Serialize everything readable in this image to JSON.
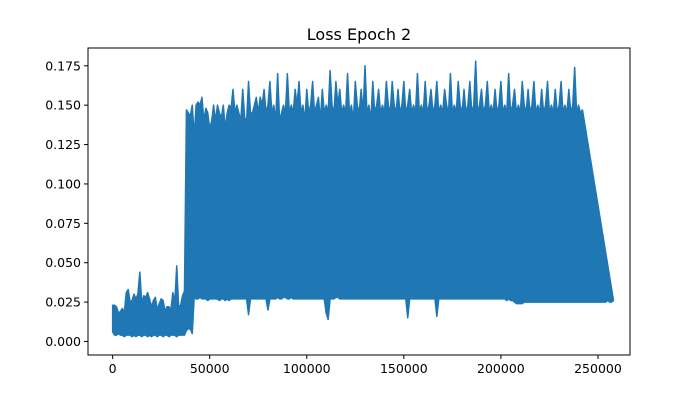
{
  "chart_data": {
    "type": "line",
    "title": "Loss Epoch 2",
    "xlabel": "",
    "ylabel": "",
    "xlim": [
      -12700,
      266500
    ],
    "ylim": [
      -0.0086,
      0.1863
    ],
    "grid": false,
    "legend": "none",
    "x_ticks": [
      0,
      50000,
      100000,
      150000,
      200000,
      250000
    ],
    "x_tick_labels": [
      "0",
      "50000",
      "100000",
      "150000",
      "200000",
      "250000"
    ],
    "y_ticks": [
      0.0,
      0.025,
      0.05,
      0.075,
      0.1,
      0.125,
      0.15,
      0.175
    ],
    "y_tick_labels": [
      "0.000",
      "0.025",
      "0.050",
      "0.075",
      "0.100",
      "0.125",
      "0.150",
      "0.175"
    ],
    "series": [
      {
        "color": "#1f77b4",
        "sample_step": 1000,
        "x_start": 0,
        "band_low": [
          0.006,
          0.004,
          0.004,
          0.005,
          0.004,
          0.004,
          0.003,
          0.004,
          0.004,
          0.004,
          0.003,
          0.004,
          0.003,
          0.004,
          0.004,
          0.003,
          0.004,
          0.004,
          0.003,
          0.004,
          0.003,
          0.004,
          0.004,
          0.003,
          0.004,
          0.004,
          0.003,
          0.004,
          0.004,
          0.003,
          0.004,
          0.004,
          0.004,
          0.003,
          0.004,
          0.004,
          0.004,
          0.004,
          0.007,
          0.008,
          0.008,
          0.005,
          0.028,
          0.027,
          0.027,
          0.028,
          0.027,
          0.027,
          0.027,
          0.026,
          0.027,
          0.027,
          0.027,
          0.027,
          0.027,
          0.026,
          0.027,
          0.027,
          0.026,
          0.027,
          0.026,
          0.027,
          0.027,
          0.027,
          0.027,
          0.027,
          0.027,
          0.027,
          0.027,
          0.027,
          0.017,
          0.027,
          0.027,
          0.027,
          0.027,
          0.027,
          0.027,
          0.027,
          0.027,
          0.027,
          0.02,
          0.027,
          0.027,
          0.027,
          0.027,
          0.028,
          0.027,
          0.027,
          0.028,
          0.028,
          0.027,
          0.027,
          0.028,
          0.027,
          0.027,
          0.027,
          0.027,
          0.027,
          0.027,
          0.027,
          0.027,
          0.027,
          0.027,
          0.027,
          0.027,
          0.027,
          0.027,
          0.027,
          0.027,
          0.027,
          0.018,
          0.014,
          0.027,
          0.027,
          0.027,
          0.028,
          0.028,
          0.027,
          0.027,
          0.027,
          0.027,
          0.027,
          0.027,
          0.027,
          0.027,
          0.027,
          0.027,
          0.027,
          0.027,
          0.027,
          0.027,
          0.027,
          0.027,
          0.027,
          0.027,
          0.027,
          0.027,
          0.027,
          0.027,
          0.027,
          0.027,
          0.027,
          0.027,
          0.027,
          0.027,
          0.027,
          0.027,
          0.027,
          0.027,
          0.027,
          0.027,
          0.027,
          0.015,
          0.027,
          0.027,
          0.027,
          0.027,
          0.027,
          0.027,
          0.027,
          0.027,
          0.027,
          0.027,
          0.027,
          0.027,
          0.027,
          0.027,
          0.016,
          0.027,
          0.027,
          0.027,
          0.027,
          0.027,
          0.027,
          0.027,
          0.027,
          0.027,
          0.027,
          0.027,
          0.027,
          0.027,
          0.027,
          0.027,
          0.027,
          0.027,
          0.027,
          0.027,
          0.027,
          0.027,
          0.027,
          0.027,
          0.027,
          0.027,
          0.027,
          0.027,
          0.027,
          0.027,
          0.027,
          0.027,
          0.027,
          0.027,
          0.027,
          0.027,
          0.026,
          0.027,
          0.026,
          0.026,
          0.025,
          0.024,
          0.024,
          0.024,
          0.024,
          0.025,
          0.025,
          0.025,
          0.025,
          0.025,
          0.025,
          0.025,
          0.025,
          0.025,
          0.025,
          0.025,
          0.025,
          0.025,
          0.025,
          0.025,
          0.025,
          0.025,
          0.025,
          0.025,
          0.025,
          0.025,
          0.025,
          0.025,
          0.025,
          0.025,
          0.025,
          0.025,
          0.025,
          0.025,
          0.025,
          0.025,
          0.025,
          0.025,
          0.025,
          0.025,
          0.025,
          0.025,
          0.025,
          0.025,
          0.025,
          0.025,
          0.025,
          0.025,
          0.026,
          0.025,
          0.025,
          0.026
        ],
        "band_high": [
          0.023,
          0.023,
          0.022,
          0.018,
          0.019,
          0.021,
          0.018,
          0.031,
          0.033,
          0.025,
          0.026,
          0.03,
          0.027,
          0.03,
          0.044,
          0.024,
          0.029,
          0.028,
          0.031,
          0.027,
          0.022,
          0.026,
          0.028,
          0.02,
          0.024,
          0.027,
          0.026,
          0.019,
          0.022,
          0.022,
          0.02,
          0.031,
          0.025,
          0.048,
          0.022,
          0.023,
          0.029,
          0.032,
          0.147,
          0.145,
          0.143,
          0.15,
          0.13,
          0.15,
          0.152,
          0.15,
          0.155,
          0.14,
          0.148,
          0.145,
          0.135,
          0.14,
          0.15,
          0.14,
          0.15,
          0.145,
          0.142,
          0.15,
          0.135,
          0.145,
          0.15,
          0.148,
          0.16,
          0.145,
          0.15,
          0.145,
          0.14,
          0.16,
          0.142,
          0.14,
          0.165,
          0.145,
          0.145,
          0.15,
          0.155,
          0.145,
          0.155,
          0.15,
          0.16,
          0.145,
          0.15,
          0.165,
          0.145,
          0.15,
          0.14,
          0.17,
          0.14,
          0.145,
          0.15,
          0.145,
          0.17,
          0.145,
          0.15,
          0.145,
          0.16,
          0.15,
          0.165,
          0.145,
          0.15,
          0.14,
          0.16,
          0.145,
          0.15,
          0.165,
          0.145,
          0.15,
          0.155,
          0.14,
          0.16,
          0.145,
          0.15,
          0.145,
          0.172,
          0.15,
          0.145,
          0.165,
          0.15,
          0.16,
          0.145,
          0.15,
          0.145,
          0.17,
          0.145,
          0.15,
          0.14,
          0.165,
          0.15,
          0.145,
          0.16,
          0.145,
          0.175,
          0.145,
          0.15,
          0.14,
          0.165,
          0.145,
          0.15,
          0.16,
          0.145,
          0.15,
          0.145,
          0.165,
          0.15,
          0.145,
          0.165,
          0.15,
          0.145,
          0.16,
          0.145,
          0.15,
          0.165,
          0.145,
          0.15,
          0.16,
          0.145,
          0.15,
          0.145,
          0.17,
          0.145,
          0.15,
          0.145,
          0.165,
          0.145,
          0.15,
          0.16,
          0.145,
          0.15,
          0.165,
          0.145,
          0.15,
          0.145,
          0.16,
          0.15,
          0.145,
          0.17,
          0.145,
          0.15,
          0.145,
          0.165,
          0.15,
          0.145,
          0.16,
          0.145,
          0.15,
          0.165,
          0.145,
          0.15,
          0.178,
          0.145,
          0.15,
          0.16,
          0.145,
          0.15,
          0.165,
          0.145,
          0.15,
          0.145,
          0.16,
          0.145,
          0.15,
          0.165,
          0.145,
          0.15,
          0.145,
          0.17,
          0.145,
          0.15,
          0.16,
          0.145,
          0.15,
          0.145,
          0.165,
          0.15,
          0.145,
          0.16,
          0.145,
          0.15,
          0.165,
          0.145,
          0.15,
          0.145,
          0.16,
          0.145,
          0.15,
          0.165,
          0.145,
          0.15,
          0.145,
          0.16,
          0.145,
          0.15,
          0.165,
          0.145,
          0.15,
          0.145,
          0.16,
          0.145,
          0.15,
          0.174,
          0.145,
          0.15,
          0.145,
          0.147
        ]
      }
    ]
  }
}
